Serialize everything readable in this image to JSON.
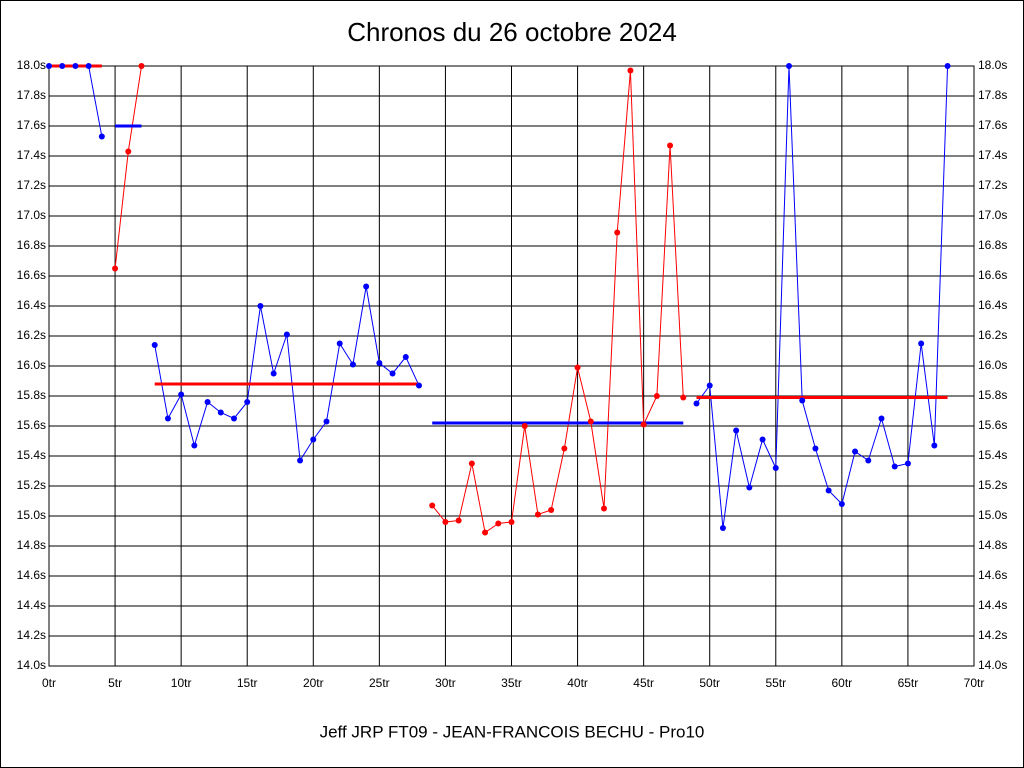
{
  "chart_data": {
    "type": "line",
    "title": "Chronos du 26 octobre 2024",
    "subtitle": "Jeff JRP FT09 - JEAN-FRANCOIS BECHU - Pro10",
    "xlim": [
      0,
      70
    ],
    "xticks": [
      {
        "value": 0,
        "label": "0tr"
      },
      {
        "value": 5,
        "label": "5tr"
      },
      {
        "value": 10,
        "label": "10tr"
      },
      {
        "value": 15,
        "label": "15tr"
      },
      {
        "value": 20,
        "label": "20tr"
      },
      {
        "value": 25,
        "label": "25tr"
      },
      {
        "value": 30,
        "label": "30tr"
      },
      {
        "value": 35,
        "label": "35tr"
      },
      {
        "value": 40,
        "label": "40tr"
      },
      {
        "value": 45,
        "label": "45tr"
      },
      {
        "value": 50,
        "label": "50tr"
      },
      {
        "value": 55,
        "label": "55tr"
      },
      {
        "value": 60,
        "label": "60tr"
      },
      {
        "value": 65,
        "label": "65tr"
      },
      {
        "value": 70,
        "label": "70tr"
      }
    ],
    "ylim": [
      14,
      18
    ],
    "yticks": [
      {
        "value": 14,
        "label": "14.0s"
      },
      {
        "value": 14.2,
        "label": "14.2s"
      },
      {
        "value": 14.4,
        "label": "14.4s"
      },
      {
        "value": 14.6,
        "label": "14.6s"
      },
      {
        "value": 14.8,
        "label": "14.8s"
      },
      {
        "value": 15,
        "label": "15.0s"
      },
      {
        "value": 15.2,
        "label": "15.2s"
      },
      {
        "value": 15.4,
        "label": "15.4s"
      },
      {
        "value": 15.6,
        "label": "15.6s"
      },
      {
        "value": 15.8,
        "label": "15.8s"
      },
      {
        "value": 16,
        "label": "16.0s"
      },
      {
        "value": 16.2,
        "label": "16.2s"
      },
      {
        "value": 16.4,
        "label": "16.4s"
      },
      {
        "value": 16.6,
        "label": "16.6s"
      },
      {
        "value": 16.8,
        "label": "16.8s"
      },
      {
        "value": 17,
        "label": "17.0s"
      },
      {
        "value": 17.2,
        "label": "17.2s"
      },
      {
        "value": 17.4,
        "label": "17.4s"
      },
      {
        "value": 17.6,
        "label": "17.6s"
      },
      {
        "value": 17.8,
        "label": "17.8s"
      },
      {
        "value": 18,
        "label": "18.0s"
      }
    ],
    "grid": true,
    "series": [
      {
        "color": "#0000ff",
        "x": [
          0,
          1,
          2,
          3,
          4
        ],
        "values": [
          18,
          18,
          18,
          18,
          17.53
        ]
      },
      {
        "color": "#ff0000",
        "x": [
          5,
          6,
          7
        ],
        "values": [
          16.65,
          17.43,
          18
        ]
      },
      {
        "color": "#0000ff",
        "x": [
          8,
          9,
          10,
          11,
          12,
          13,
          14,
          15,
          16,
          17,
          18,
          19,
          20,
          21,
          22,
          23,
          24,
          25,
          26,
          27,
          28
        ],
        "values": [
          16.14,
          15.65,
          15.81,
          15.47,
          15.76,
          15.69,
          15.65,
          15.76,
          16.4,
          15.95,
          16.21,
          15.37,
          15.51,
          15.63,
          16.15,
          16.01,
          16.53,
          16.02,
          15.95,
          16.06,
          15.87
        ]
      },
      {
        "color": "#ff0000",
        "x": [
          29,
          30,
          31,
          32,
          33,
          34,
          35,
          36,
          37,
          38,
          39,
          40,
          41,
          42,
          43,
          44,
          45,
          46,
          47,
          48
        ],
        "values": [
          15.07,
          14.96,
          14.97,
          15.35,
          14.89,
          14.95,
          14.96,
          15.6,
          15.01,
          15.04,
          15.45,
          15.99,
          15.63,
          15.05,
          16.89,
          17.97,
          15.61,
          15.8,
          17.47,
          15.79
        ]
      },
      {
        "color": "#0000ff",
        "x": [
          49,
          50,
          51,
          52,
          53,
          54,
          55,
          56,
          57,
          58,
          59,
          60,
          61,
          62,
          63,
          64,
          65,
          66,
          67,
          68
        ],
        "values": [
          15.75,
          15.87,
          14.92,
          15.57,
          15.19,
          15.51,
          15.32,
          18,
          15.77,
          15.45,
          15.17,
          15.08,
          15.43,
          15.37,
          15.65,
          15.33,
          15.35,
          16.15,
          15.47,
          18
        ]
      }
    ],
    "mean_lines": [
      {
        "color": "#ff0000",
        "x": [
          0,
          4
        ],
        "value": 18
      },
      {
        "color": "#0000ff",
        "x": [
          5,
          7
        ],
        "value": 17.6
      },
      {
        "color": "#ff0000",
        "x": [
          8,
          28
        ],
        "value": 15.88
      },
      {
        "color": "#0000ff",
        "x": [
          29,
          48
        ],
        "value": 15.62
      },
      {
        "color": "#ff0000",
        "x": [
          49,
          68
        ],
        "value": 15.79
      }
    ]
  }
}
